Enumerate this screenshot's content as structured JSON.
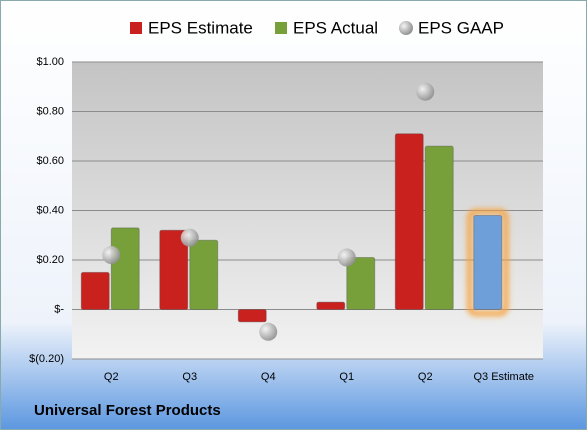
{
  "chart_data": {
    "type": "bar",
    "title": "Universal Forest Products",
    "categories": [
      "Q2",
      "Q3",
      "Q4",
      "Q1",
      "Q2",
      "Q3 Estimate"
    ],
    "series": [
      {
        "name": "EPS Estimate",
        "type": "bar",
        "color": "#c9211e",
        "values": [
          0.15,
          0.32,
          -0.05,
          0.03,
          0.71,
          0.38
        ],
        "colors": [
          "#c9211e",
          "#c9211e",
          "#c9211e",
          "#c9211e",
          "#c9211e",
          "#6f9fd8"
        ]
      },
      {
        "name": "EPS Actual",
        "type": "bar",
        "color": "#77a03a",
        "values": [
          0.33,
          0.28,
          null,
          0.21,
          0.66,
          null
        ]
      },
      {
        "name": "EPS GAAP",
        "type": "scatter",
        "color": "#a6a6a6",
        "values": [
          0.22,
          0.29,
          -0.09,
          0.21,
          0.88,
          null
        ]
      }
    ],
    "ylim": [
      -0.2,
      1.0
    ],
    "yticks": [
      {
        "value": -0.2,
        "label": "$(0.20)"
      },
      {
        "value": 0,
        "label": "$-"
      },
      {
        "value": 0.2,
        "label": "$0.20"
      },
      {
        "value": 0.4,
        "label": "$0.40"
      },
      {
        "value": 0.6,
        "label": "$0.60"
      },
      {
        "value": 0.8,
        "label": "$0.80"
      },
      {
        "value": 1.0,
        "label": "$1.00"
      }
    ],
    "grid": true,
    "legend": "top"
  }
}
